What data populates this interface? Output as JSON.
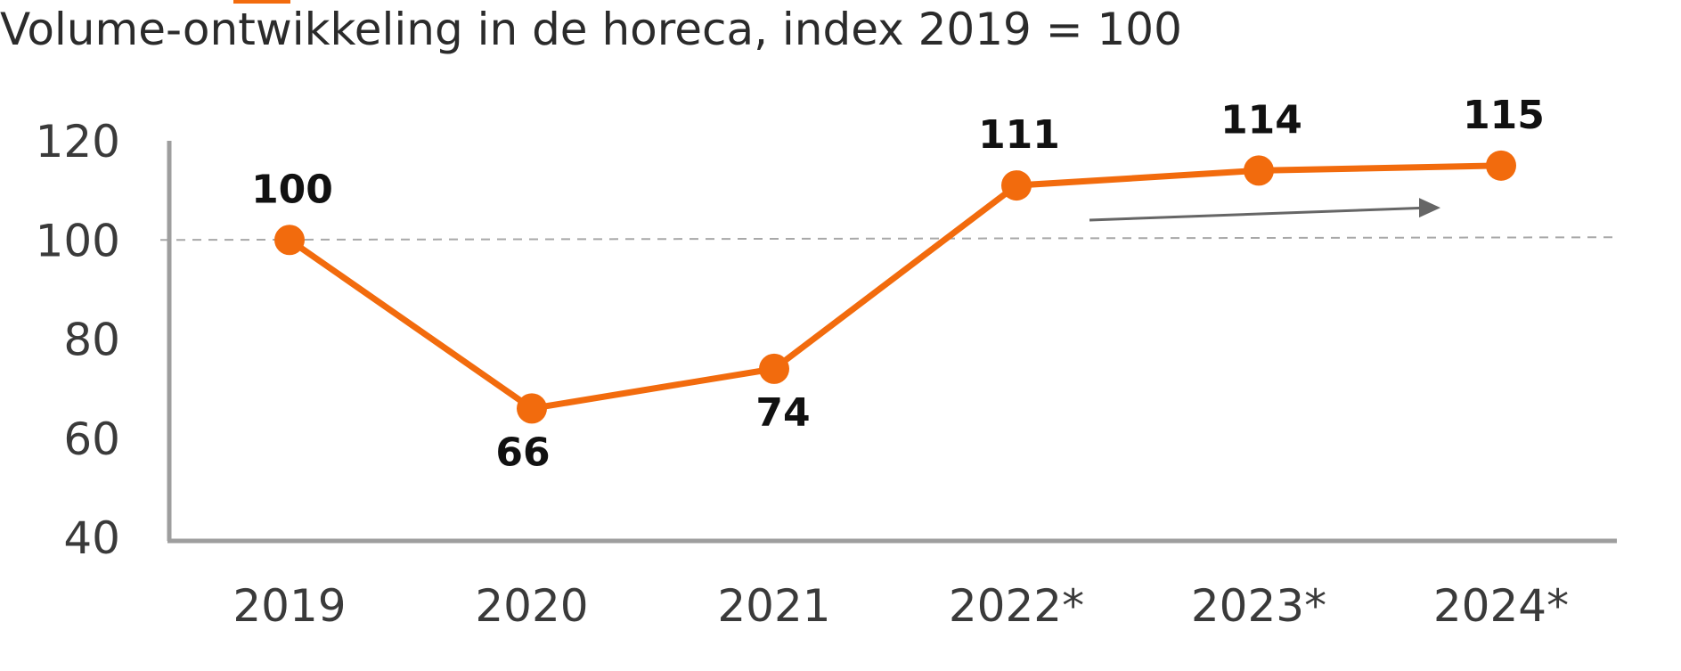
{
  "chart_data": {
    "type": "line",
    "title": "Volume-ontwikkeling in de horeca, index 2019 = 100",
    "categories": [
      "2019",
      "2020",
      "2021",
      "2022*",
      "2023*",
      "2024*"
    ],
    "series": [
      {
        "values": [
          100,
          66,
          74,
          111,
          114,
          115
        ]
      }
    ],
    "data_labels": [
      "100",
      "66",
      "74",
      "111",
      "114",
      "115"
    ],
    "xlabel": "",
    "ylabel": "",
    "ylim": [
      40,
      120
    ],
    "yticks": [
      40,
      60,
      80,
      100,
      120
    ],
    "reference_line": 100,
    "grid": false,
    "legend": "none",
    "colors": {
      "series": "#f26b0d",
      "axis": "#9e9e9e",
      "reference": "#a8a8a8",
      "arrow": "#666666"
    }
  }
}
